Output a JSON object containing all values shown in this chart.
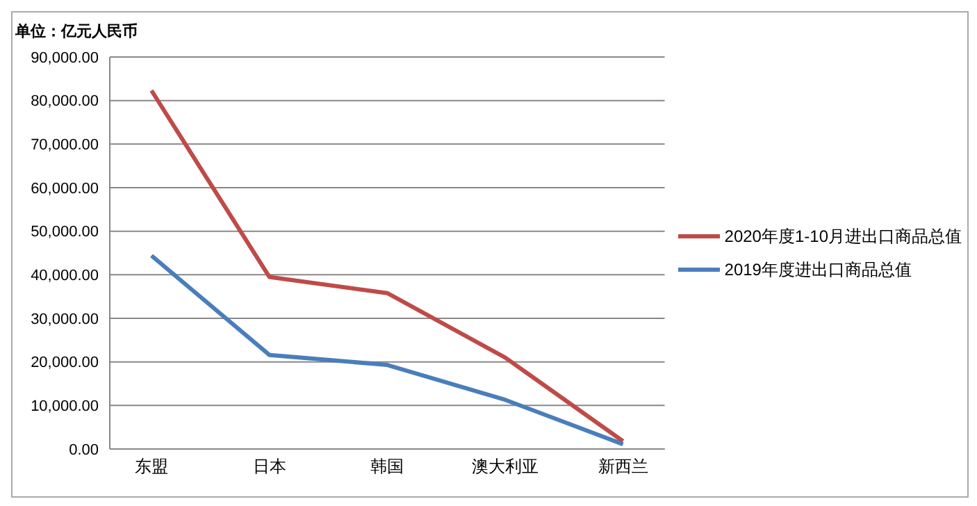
{
  "chart_data": {
    "type": "line",
    "title": "单位：亿元人民币",
    "categories": [
      "东盟",
      "日本",
      "韩国",
      "澳大利亚",
      "新西兰"
    ],
    "series": [
      {
        "name": "2020年度1-10月进出口商品总值",
        "color": "#be4b48",
        "values": [
          82300,
          39500,
          35800,
          21000,
          1800
        ]
      },
      {
        "name": "2019年度进出口商品总值",
        "color": "#4a7ebb",
        "values": [
          44400,
          21600,
          19300,
          11300,
          1100
        ]
      }
    ],
    "ylim": [
      0,
      90000
    ],
    "yticks": [
      {
        "value": 0,
        "label": "0.00"
      },
      {
        "value": 10000,
        "label": "10,000.00"
      },
      {
        "value": 20000,
        "label": "20,000.00"
      },
      {
        "value": 30000,
        "label": "30,000.00"
      },
      {
        "value": 40000,
        "label": "40,000.00"
      },
      {
        "value": 50000,
        "label": "50,000.00"
      },
      {
        "value": 60000,
        "label": "60,000.00"
      },
      {
        "value": 70000,
        "label": "70,000.00"
      },
      {
        "value": 80000,
        "label": "80,000.00"
      },
      {
        "value": 90000,
        "label": "90,000.00"
      }
    ],
    "grid": "y",
    "legend": "right",
    "marker": "none",
    "line_style": "solid"
  }
}
